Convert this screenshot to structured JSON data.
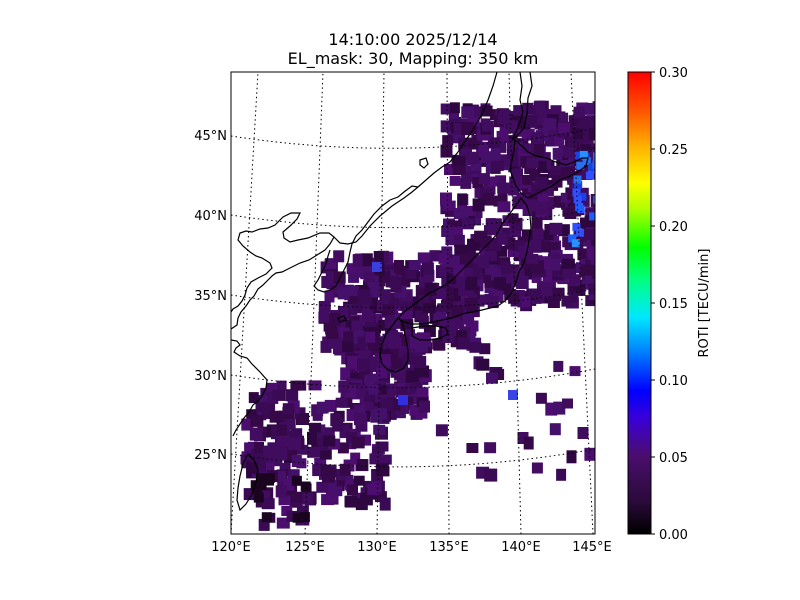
{
  "title_line1": "14:10:00 2025/12/14",
  "title_line2": "EL_mask: 30, Mapping: 350 km",
  "lat_labels": [
    "45°N",
    "40°N",
    "35°N",
    "30°N",
    "25°N"
  ],
  "lon_labels": [
    "120°E",
    "125°E",
    "130°E",
    "135°E",
    "140°E",
    "145°E"
  ],
  "colorbar": {
    "label": "ROTI [TECU/min]",
    "ticks": [
      "0.00",
      "0.05",
      "0.10",
      "0.15",
      "0.20",
      "0.25",
      "0.30"
    ],
    "min": 0.0,
    "max": 0.3,
    "colormap": "gist_ncar-like (black-purple-blue-cyan-green-yellow-red)"
  },
  "map": {
    "lon_range": [
      120,
      145
    ],
    "lat_range": [
      20,
      49
    ],
    "coastline_color": "#000000",
    "grid": "dotted",
    "dominant_value": 0.03,
    "elevated_region": "east of Hokkaido / Tohoku coast, ~0.07-0.10"
  }
}
